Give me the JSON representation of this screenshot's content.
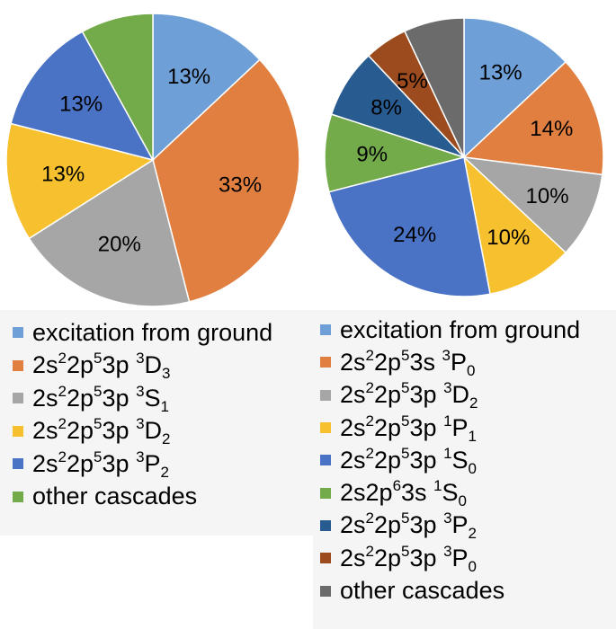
{
  "colors": {
    "light_blue": "#6e9fd6",
    "orange": "#e07f40",
    "gray": "#a6a6a6",
    "yellow": "#f6c02e",
    "blue": "#4a73c6",
    "green": "#73ab4b",
    "dark_blue": "#285b8f",
    "brown": "#9c4b1e",
    "dark_gray": "#6b6b6b"
  },
  "chart_data": [
    {
      "type": "pie",
      "categories": [
        "excitation from ground",
        "2s22p53p 3D3",
        "2s22p53p 3S1",
        "2s22p53p 3D2",
        "2s22p53p 3P2",
        "other cascades"
      ],
      "values": [
        13,
        33,
        20,
        13,
        13,
        8
      ],
      "data_labels": [
        "13%",
        "33%",
        "20%",
        "13%",
        "13%",
        ""
      ],
      "legend_placement": "bottom",
      "legend": [
        {
          "parts": [
            [
              "t",
              "excitation from ground"
            ]
          ]
        },
        {
          "parts": [
            [
              "t",
              "2s"
            ],
            [
              "sup",
              "2"
            ],
            [
              "t",
              "2p"
            ],
            [
              "sup",
              "5"
            ],
            [
              "t",
              "3p "
            ],
            [
              "sup",
              "3"
            ],
            [
              "t",
              "D"
            ],
            [
              "sub",
              "3"
            ]
          ]
        },
        {
          "parts": [
            [
              "t",
              "2s"
            ],
            [
              "sup",
              "2"
            ],
            [
              "t",
              "2p"
            ],
            [
              "sup",
              "5"
            ],
            [
              "t",
              "3p "
            ],
            [
              "sup",
              "3"
            ],
            [
              "t",
              "S"
            ],
            [
              "sub",
              "1"
            ]
          ]
        },
        {
          "parts": [
            [
              "t",
              "2s"
            ],
            [
              "sup",
              "2"
            ],
            [
              "t",
              "2p"
            ],
            [
              "sup",
              "5"
            ],
            [
              "t",
              "3p "
            ],
            [
              "sup",
              "3"
            ],
            [
              "t",
              "D"
            ],
            [
              "sub",
              "2"
            ]
          ]
        },
        {
          "parts": [
            [
              "t",
              "2s"
            ],
            [
              "sup",
              "2"
            ],
            [
              "t",
              "2p"
            ],
            [
              "sup",
              "5"
            ],
            [
              "t",
              "3p "
            ],
            [
              "sup",
              "3"
            ],
            [
              "t",
              "P"
            ],
            [
              "sub",
              "2"
            ]
          ]
        },
        {
          "parts": [
            [
              "t",
              "other cascades"
            ]
          ]
        }
      ],
      "slice_colors": [
        "light_blue",
        "orange",
        "gray",
        "yellow",
        "blue",
        "green"
      ]
    },
    {
      "type": "pie",
      "categories": [
        "excitation from ground",
        "2s22p53s 3P0",
        "2s22p53p 3D2",
        "2s22p53p 1P1",
        "2s22p53p 1S0",
        "2s2p63s 1S0",
        "2s22p53p 3P2",
        "2s22p53p 3P0",
        "other cascades"
      ],
      "values": [
        13,
        14,
        10,
        10,
        24,
        9,
        8,
        5,
        7
      ],
      "data_labels": [
        "13%",
        "14%",
        "10%",
        "10%",
        "24%",
        "9%",
        "8%",
        "5%",
        ""
      ],
      "legend_placement": "bottom",
      "legend": [
        {
          "parts": [
            [
              "t",
              "excitation from ground"
            ]
          ]
        },
        {
          "parts": [
            [
              "t",
              "2s"
            ],
            [
              "sup",
              "2"
            ],
            [
              "t",
              "2p"
            ],
            [
              "sup",
              "5"
            ],
            [
              "t",
              "3s "
            ],
            [
              "sup",
              "3"
            ],
            [
              "t",
              "P"
            ],
            [
              "sub",
              "0"
            ]
          ]
        },
        {
          "parts": [
            [
              "t",
              "2s"
            ],
            [
              "sup",
              "2"
            ],
            [
              "t",
              "2p"
            ],
            [
              "sup",
              "5"
            ],
            [
              "t",
              "3p "
            ],
            [
              "sup",
              "3"
            ],
            [
              "t",
              "D"
            ],
            [
              "sub",
              "2"
            ]
          ]
        },
        {
          "parts": [
            [
              "t",
              "2s"
            ],
            [
              "sup",
              "2"
            ],
            [
              "t",
              "2p"
            ],
            [
              "sup",
              "5"
            ],
            [
              "t",
              "3p "
            ],
            [
              "sup",
              "1"
            ],
            [
              "t",
              "P"
            ],
            [
              "sub",
              "1"
            ]
          ]
        },
        {
          "parts": [
            [
              "t",
              "2s"
            ],
            [
              "sup",
              "2"
            ],
            [
              "t",
              "2p"
            ],
            [
              "sup",
              "5"
            ],
            [
              "t",
              "3p "
            ],
            [
              "sup",
              "1"
            ],
            [
              "t",
              "S"
            ],
            [
              "sub",
              "0"
            ]
          ]
        },
        {
          "parts": [
            [
              "t",
              "2s2p"
            ],
            [
              "sup",
              "6"
            ],
            [
              "t",
              "3s "
            ],
            [
              "sup",
              "1"
            ],
            [
              "t",
              "S"
            ],
            [
              "sub",
              "0"
            ]
          ]
        },
        {
          "parts": [
            [
              "t",
              "2s"
            ],
            [
              "sup",
              "2"
            ],
            [
              "t",
              "2p"
            ],
            [
              "sup",
              "5"
            ],
            [
              "t",
              "3p "
            ],
            [
              "sup",
              "3"
            ],
            [
              "t",
              "P"
            ],
            [
              "sub",
              "2"
            ]
          ]
        },
        {
          "parts": [
            [
              "t",
              "2s"
            ],
            [
              "sup",
              "2"
            ],
            [
              "t",
              "2p"
            ],
            [
              "sup",
              "5"
            ],
            [
              "t",
              "3p "
            ],
            [
              "sup",
              "3"
            ],
            [
              "t",
              "P"
            ],
            [
              "sub",
              "0"
            ]
          ]
        },
        {
          "parts": [
            [
              "t",
              "other cascades"
            ]
          ]
        }
      ],
      "slice_colors": [
        "light_blue",
        "orange",
        "gray",
        "yellow",
        "blue",
        "green",
        "dark_blue",
        "brown",
        "dark_gray"
      ]
    }
  ]
}
